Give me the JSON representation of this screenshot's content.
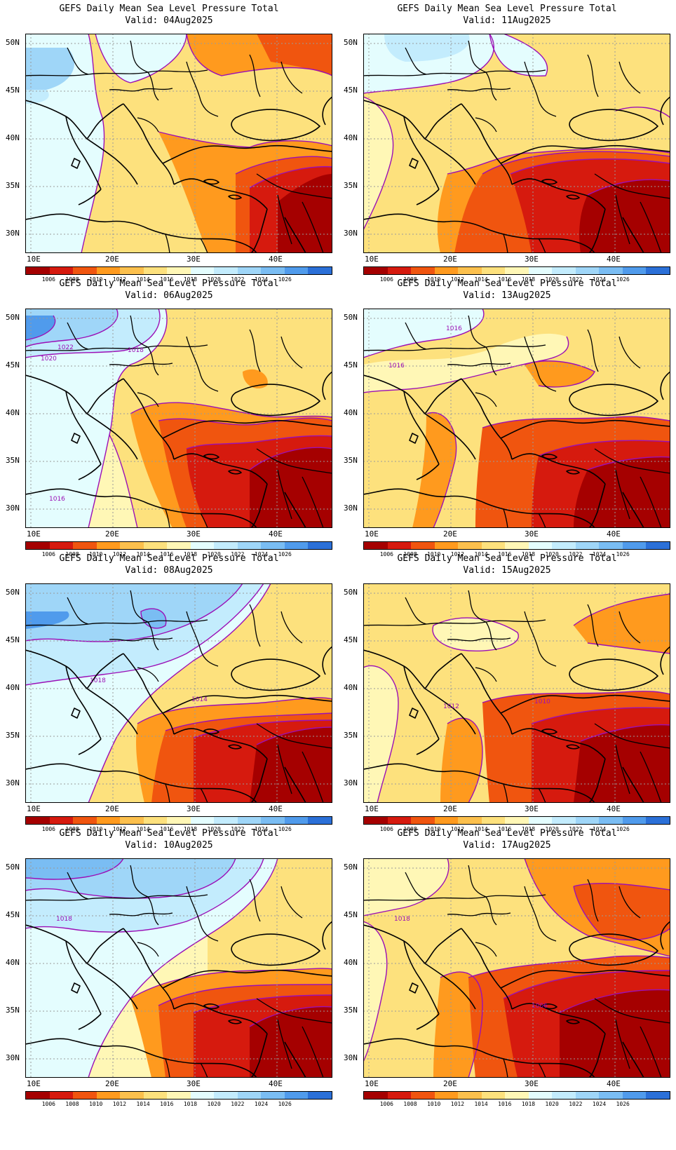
{
  "palette": {
    "levels": [
      "1006",
      "1008",
      "1010",
      "1012",
      "1014",
      "1016",
      "1018",
      "1020",
      "1022",
      "1024",
      "1026"
    ],
    "colors": [
      "#a50000",
      "#d61a0e",
      "#f0550f",
      "#ff9a1e",
      "#fcc04d",
      "#fde17d",
      "#fff7b6",
      "#e4fdfe",
      "#c3ecfd",
      "#9fd6f8",
      "#7abdf3",
      "#509bec",
      "#2b70d8"
    ],
    "contour_color": "#9b0fb6",
    "coast_color": "#000000"
  },
  "axes": {
    "lat_labels": [
      "50N",
      "45N",
      "40N",
      "35N",
      "30N"
    ],
    "lon_labels": [
      "10E",
      "20E",
      "30E",
      "40E"
    ]
  },
  "panels": [
    {
      "title": "GEFS Daily Mean Sea Level Pressure Total",
      "valid": "Valid: 04Aug2025",
      "labels": []
    },
    {
      "title": "GEFS Daily Mean Sea Level Pressure Total",
      "valid": "Valid: 11Aug2025",
      "labels": []
    },
    {
      "title": "GEFS Daily Mean Sea Level Pressure Total",
      "valid": "Valid: 06Aug2025",
      "labels": [
        "1022",
        "1020",
        "1018",
        "1016"
      ]
    },
    {
      "title": "GEFS Daily Mean Sea Level Pressure Total",
      "valid": "Valid: 13Aug2025",
      "labels": [
        "1016",
        "1016"
      ]
    },
    {
      "title": "GEFS Daily Mean Sea Level Pressure Total",
      "valid": "Valid: 08Aug2025",
      "labels": [
        "1018",
        "1014"
      ]
    },
    {
      "title": "GEFS Daily Mean Sea Level Pressure Total",
      "valid": "Valid: 15Aug2025",
      "labels": [
        "1012",
        "1010"
      ]
    },
    {
      "title": "GEFS Daily Mean Sea Level Pressure Total",
      "valid": "Valid: 10Aug2025",
      "labels": [
        "1018"
      ]
    },
    {
      "title": "GEFS Daily Mean Sea Level Pressure Total",
      "valid": "Valid: 17Aug2025",
      "labels": [
        "1018",
        "1006"
      ]
    }
  ]
}
